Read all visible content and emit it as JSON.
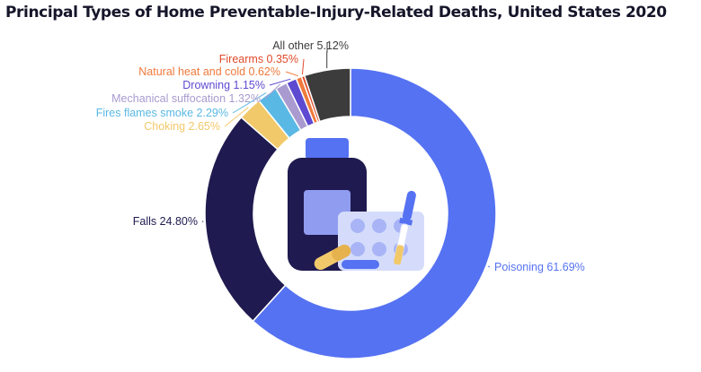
{
  "chart_data": {
    "type": "pie",
    "title": "Principal Types of Home Preventable-Injury-Related Deaths, United States 2020",
    "donut": true,
    "start_angle_deg": 0,
    "direction": "clockwise",
    "categories": [
      "Poisoning",
      "Falls",
      "Choking",
      "Fires flames smoke",
      "Mechanical suffocation",
      "Drowning",
      "Natural heat and cold",
      "Firearms",
      "All other"
    ],
    "values": [
      61.69,
      24.8,
      2.65,
      2.29,
      1.32,
      1.15,
      0.62,
      0.35,
      5.12
    ],
    "labels": [
      "Poisoning 61.69%",
      "Falls 24.80%",
      "Choking 2.65%",
      "Fires flames smoke 2.29%",
      "Mechanical suffocation 1.32%",
      "Drowning 1.15%",
      "Natural heat and cold 0.62%",
      "Firearms 0.35%",
      "All other 5.12%"
    ],
    "colors": [
      "#5572f2",
      "#1f1a4f",
      "#f2c96a",
      "#5ab8e4",
      "#a99bd0",
      "#5e49d1",
      "#f07a3c",
      "#e04a2a",
      "#3c3c3c"
    ],
    "center_icon": "medicine-bottle-pills-dropper-icon"
  }
}
